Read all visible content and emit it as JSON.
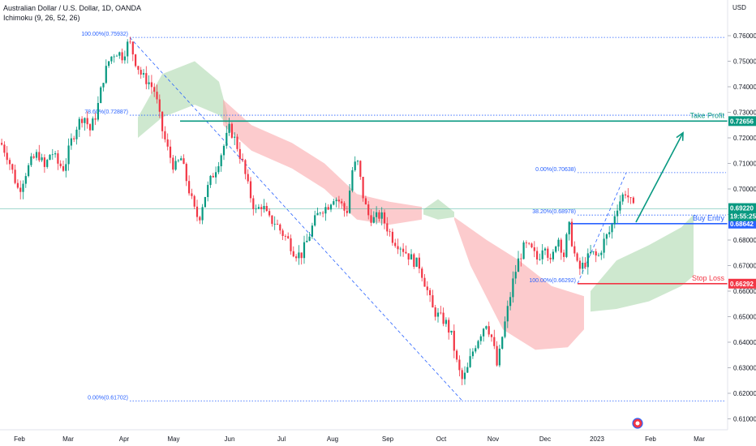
{
  "header": {
    "title": "Australian Dollar / U.S. Dollar, 1D, OANDA",
    "indicator": "Ichimoku (9, 26, 52, 26)",
    "currency": "USD"
  },
  "chart_data": {
    "type": "candlestick",
    "symbol": "AUDUSD",
    "timeframe": "1D",
    "ylim": [
      0.605,
      0.768
    ],
    "y_ticks": [
      "0.76000",
      "0.75000",
      "0.74000",
      "0.73000",
      "0.72000",
      "0.71000",
      "0.70000",
      "0.69000",
      "0.68000",
      "0.67000",
      "0.66000",
      "0.65000",
      "0.64000",
      "0.63000",
      "0.62000",
      "0.61000"
    ],
    "x_ticks": [
      "Feb",
      "Mar",
      "Apr",
      "May",
      "Jun",
      "Jul",
      "Aug",
      "Sep",
      "Oct",
      "Nov",
      "Dec",
      "2023",
      "Feb",
      "Mar"
    ],
    "colors": {
      "up": "#089981",
      "down": "#f23645",
      "take_profit": "#089981",
      "stop_loss": "#f23645",
      "buy_entry": "#2962ff",
      "fib": "#2962ff",
      "cloud_bull": "#a5d6a7",
      "cloud_bear": "#faa1a4"
    },
    "price_path": [
      [
        0,
        0.718
      ],
      [
        8,
        0.713
      ],
      [
        16,
        0.705
      ],
      [
        22,
        0.699
      ],
      [
        30,
        0.706
      ],
      [
        38,
        0.711
      ],
      [
        46,
        0.714
      ],
      [
        54,
        0.708
      ],
      [
        62,
        0.715
      ],
      [
        70,
        0.71
      ],
      [
        78,
        0.708
      ],
      [
        86,
        0.718
      ],
      [
        94,
        0.725
      ],
      [
        102,
        0.729
      ],
      [
        110,
        0.723
      ],
      [
        118,
        0.73
      ],
      [
        126,
        0.743
      ],
      [
        134,
        0.751
      ],
      [
        142,
        0.754
      ],
      [
        150,
        0.752
      ],
      [
        158,
        0.758
      ],
      [
        166,
        0.75
      ],
      [
        174,
        0.744
      ],
      [
        182,
        0.742
      ],
      [
        190,
        0.738
      ],
      [
        198,
        0.724
      ],
      [
        206,
        0.715
      ],
      [
        214,
        0.708
      ],
      [
        222,
        0.712
      ],
      [
        230,
        0.702
      ],
      [
        238,
        0.692
      ],
      [
        244,
        0.688
      ],
      [
        250,
        0.696
      ],
      [
        258,
        0.703
      ],
      [
        266,
        0.709
      ],
      [
        274,
        0.716
      ],
      [
        282,
        0.724
      ],
      [
        290,
        0.718
      ],
      [
        298,
        0.71
      ],
      [
        306,
        0.699
      ],
      [
        314,
        0.691
      ],
      [
        322,
        0.694
      ],
      [
        330,
        0.688
      ],
      [
        338,
        0.687
      ],
      [
        346,
        0.683
      ],
      [
        354,
        0.68
      ],
      [
        362,
        0.675
      ],
      [
        370,
        0.674
      ],
      [
        378,
        0.68
      ],
      [
        386,
        0.687
      ],
      [
        394,
        0.692
      ],
      [
        402,
        0.693
      ],
      [
        410,
        0.697
      ],
      [
        418,
        0.695
      ],
      [
        426,
        0.69
      ],
      [
        434,
        0.709
      ],
      [
        440,
        0.71
      ],
      [
        446,
        0.698
      ],
      [
        452,
        0.69
      ],
      [
        460,
        0.688
      ],
      [
        468,
        0.69
      ],
      [
        476,
        0.685
      ],
      [
        484,
        0.68
      ],
      [
        492,
        0.678
      ],
      [
        500,
        0.675
      ],
      [
        508,
        0.672
      ],
      [
        516,
        0.67
      ],
      [
        524,
        0.662
      ],
      [
        532,
        0.653
      ],
      [
        540,
        0.65
      ],
      [
        548,
        0.648
      ],
      [
        556,
        0.642
      ],
      [
        562,
        0.632
      ],
      [
        568,
        0.625
      ],
      [
        574,
        0.628
      ],
      [
        580,
        0.635
      ],
      [
        586,
        0.64
      ],
      [
        592,
        0.644
      ],
      [
        598,
        0.648
      ],
      [
        606,
        0.641
      ],
      [
        612,
        0.63
      ],
      [
        618,
        0.642
      ],
      [
        626,
        0.655
      ],
      [
        632,
        0.665
      ],
      [
        638,
        0.672
      ],
      [
        646,
        0.678
      ],
      [
        654,
        0.676
      ],
      [
        662,
        0.672
      ],
      [
        670,
        0.68
      ],
      [
        678,
        0.67
      ],
      [
        686,
        0.682
      ],
      [
        694,
        0.674
      ],
      [
        700,
        0.686
      ],
      [
        706,
        0.676
      ],
      [
        712,
        0.668
      ],
      [
        720,
        0.671
      ],
      [
        728,
        0.675
      ],
      [
        736,
        0.673
      ],
      [
        744,
        0.68
      ],
      [
        752,
        0.684
      ],
      [
        758,
        0.692
      ],
      [
        764,
        0.696
      ],
      [
        770,
        0.699
      ],
      [
        776,
        0.695
      ],
      [
        780,
        0.6922
      ]
    ],
    "cloud_segments": [
      {
        "sentiment": "bullish",
        "upper": [
          [
            170,
            0.728
          ],
          [
            200,
            0.745
          ],
          [
            240,
            0.75
          ],
          [
            270,
            0.742
          ],
          [
            280,
            0.73
          ]
        ],
        "lower": [
          [
            170,
            0.72
          ],
          [
            200,
            0.728
          ],
          [
            240,
            0.733
          ],
          [
            270,
            0.729
          ],
          [
            280,
            0.725
          ]
        ]
      },
      {
        "sentiment": "bearish",
        "upper": [
          [
            275,
            0.735
          ],
          [
            310,
            0.725
          ],
          [
            360,
            0.718
          ],
          [
            400,
            0.71
          ],
          [
            440,
            0.698
          ],
          [
            480,
            0.695
          ],
          [
            520,
            0.693
          ]
        ],
        "lower": [
          [
            275,
            0.725
          ],
          [
            310,
            0.715
          ],
          [
            360,
            0.708
          ],
          [
            400,
            0.7
          ],
          [
            440,
            0.688
          ],
          [
            480,
            0.686
          ],
          [
            520,
            0.688
          ]
        ]
      },
      {
        "sentiment": "bullish",
        "upper": [
          [
            522,
            0.692
          ],
          [
            540,
            0.696
          ],
          [
            560,
            0.691
          ]
        ],
        "lower": [
          [
            522,
            0.69
          ],
          [
            540,
            0.688
          ],
          [
            560,
            0.689
          ]
        ]
      },
      {
        "sentiment": "bearish",
        "upper": [
          [
            560,
            0.689
          ],
          [
            600,
            0.68
          ],
          [
            640,
            0.672
          ],
          [
            680,
            0.662
          ],
          [
            720,
            0.658
          ]
        ],
        "lower": [
          [
            560,
            0.688
          ],
          [
            580,
            0.67
          ],
          [
            620,
            0.645
          ],
          [
            660,
            0.637
          ],
          [
            700,
            0.638
          ],
          [
            720,
            0.645
          ]
        ]
      },
      {
        "sentiment": "bullish",
        "upper": [
          [
            728,
            0.66
          ],
          [
            760,
            0.672
          ],
          [
            800,
            0.678
          ],
          [
            840,
            0.685
          ],
          [
            855,
            0.69
          ]
        ],
        "lower": [
          [
            728,
            0.652
          ],
          [
            760,
            0.653
          ],
          [
            800,
            0.656
          ],
          [
            840,
            0.662
          ],
          [
            855,
            0.666
          ]
        ]
      }
    ],
    "fib_upper": {
      "levels": [
        {
          "label": "100.00%(0.75932)",
          "value": 0.75932
        },
        {
          "label": "78.60%(0.72887)",
          "value": 0.72887
        },
        {
          "label": "0.00%(0.61702)",
          "value": 0.61702
        }
      ]
    },
    "fib_lower": {
      "levels": [
        {
          "label": "0.00%(0.70638)",
          "value": 0.70638
        },
        {
          "label": "38.20%(0.68978)",
          "value": 0.68978
        },
        {
          "label": "100.00%(0.66292)",
          "value": 0.66292
        }
      ]
    },
    "trade_levels": [
      {
        "name": "Take Profit",
        "value": 0.72656,
        "tag": "0.72656",
        "color": "#089981"
      },
      {
        "name": "Buy Entry",
        "value": 0.68642,
        "tag": "0.68642",
        "color": "#2962ff"
      },
      {
        "name": "Stop Loss",
        "value": 0.66292,
        "tag": "0.66292",
        "color": "#f23645"
      }
    ],
    "current_price": {
      "value": 0.6922,
      "tag": "0.69220",
      "countdown": "19:55:25",
      "color": "#089981"
    },
    "projection": {
      "from": [
        784,
        0.687
      ],
      "to": [
        842,
        0.722
      ]
    }
  }
}
